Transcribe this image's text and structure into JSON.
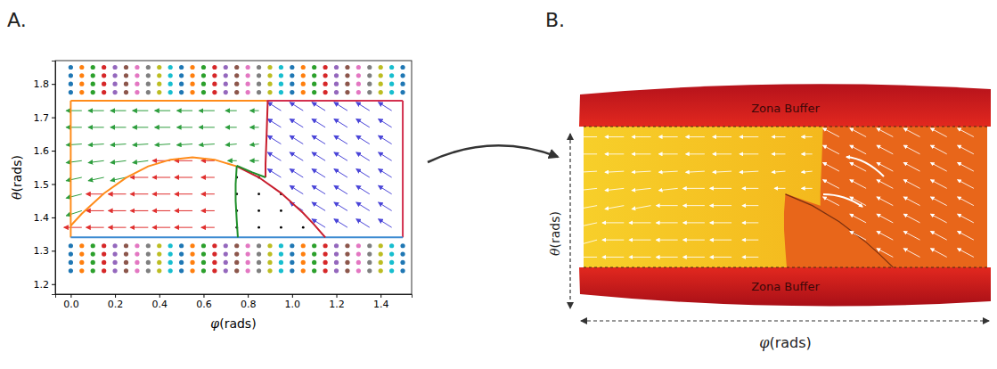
{
  "chart_data": {
    "type": "quiver",
    "panel_label": "A.",
    "x_label": "φ(rads)",
    "y_label": "θ(rads)",
    "xlim": [
      -0.07,
      1.54
    ],
    "ylim": [
      1.17,
      1.87
    ],
    "xticks": [
      {
        "value": 0,
        "label": "0.0"
      },
      0.2,
      0.4,
      0.6,
      0.8,
      {
        "value": 1,
        "label": "1.0"
      },
      1.2,
      1.4
    ],
    "yticks": [
      1.2,
      1.3,
      1.4,
      1.5,
      1.6,
      1.7,
      1.8
    ],
    "dots": {
      "x": [
        0,
        0.05,
        0.1,
        0.15,
        0.2,
        0.25,
        0.3,
        0.35,
        0.4,
        0.45,
        0.5,
        0.55,
        0.6,
        0.65,
        0.7,
        0.75,
        0.8,
        0.85,
        0.9,
        0.95,
        1,
        1.05,
        1.1,
        1.15,
        1.2,
        1.25,
        1.3,
        1.35,
        1.4,
        1.45,
        1.5
      ],
      "y": [
        1.24,
        1.265,
        1.29,
        1.315,
        1.775,
        1.8,
        1.825,
        1.85
      ],
      "colors": [
        "#1f77b4",
        "#ff7f0e",
        "#2ca02c",
        "#d62728",
        "#9467bd",
        "#8c564b",
        "#e377c2",
        "#7f7f7f",
        "#bcbd22",
        "#17becf"
      ]
    },
    "fields": [
      {
        "color": "#2e9e3e",
        "x": [
          0.05,
          0.05,
          0.05,
          0.15,
          0.25,
          0.05,
          0.15,
          0.25,
          0.35,
          0.75,
          0.85,
          0.05,
          0.15,
          0.25,
          0.35,
          0.45,
          0.55,
          0.65,
          0.75,
          0.85,
          0.05,
          0.15,
          0.25,
          0.35,
          0.45,
          0.55,
          0.65,
          0.75,
          0.85,
          0.05,
          0.15,
          0.25,
          0.35,
          0.45,
          0.55,
          0.65,
          0.75,
          0.85
        ],
        "y": [
          1.42,
          1.47,
          1.52,
          1.52,
          1.52,
          1.57,
          1.57,
          1.57,
          1.57,
          1.57,
          1.57,
          1.62,
          1.62,
          1.62,
          1.62,
          1.62,
          1.62,
          1.62,
          1.62,
          1.62,
          1.67,
          1.67,
          1.67,
          1.67,
          1.67,
          1.67,
          1.67,
          1.67,
          1.67,
          1.72,
          1.72,
          1.72,
          1.72,
          1.72,
          1.72,
          1.72,
          1.72,
          1.72
        ],
        "u": [
          -0.07,
          -0.07,
          -0.07,
          -0.07,
          -0.07,
          -0.07,
          -0.07,
          -0.07,
          -0.07,
          -0.04,
          -0.04,
          -0.07,
          -0.07,
          -0.07,
          -0.07,
          -0.07,
          -0.07,
          -0.07,
          -0.05,
          -0.04,
          -0.07,
          -0.07,
          -0.07,
          -0.07,
          -0.07,
          -0.07,
          -0.07,
          -0.05,
          -0.04,
          -0.07,
          -0.07,
          -0.07,
          -0.07,
          -0.07,
          -0.07,
          -0.07,
          -0.05,
          -0.04
        ],
        "v": [
          -0.015,
          -0.012,
          -0.01,
          -0.01,
          -0.01,
          -0.006,
          -0.006,
          -0.006,
          -0.006,
          0,
          0,
          -0.003,
          -0.003,
          -0.003,
          -0.003,
          -0.003,
          -0.003,
          -0.003,
          -0.003,
          -0.003,
          0,
          0,
          0,
          0,
          0,
          0,
          0,
          0,
          0,
          0,
          0,
          0,
          0,
          0,
          0,
          0,
          0,
          0
        ]
      },
      {
        "color": "#e0302f",
        "x": [
          0.05,
          0.15,
          0.25,
          0.35,
          0.45,
          0.55,
          0.65,
          0.15,
          0.25,
          0.35,
          0.45,
          0.55,
          0.65,
          0.15,
          0.25,
          0.35,
          0.45,
          0.55,
          0.65,
          0.35,
          0.45,
          0.55,
          0.65,
          0.45,
          0.55,
          0.65
        ],
        "y": [
          1.37,
          1.37,
          1.37,
          1.37,
          1.37,
          1.37,
          1.37,
          1.42,
          1.42,
          1.42,
          1.42,
          1.42,
          1.42,
          1.47,
          1.47,
          1.47,
          1.47,
          1.47,
          1.47,
          1.52,
          1.52,
          1.52,
          1.52,
          1.57,
          1.57,
          1.57
        ],
        "u": [
          -0.08,
          -0.08,
          -0.08,
          -0.08,
          -0.08,
          -0.08,
          -0.06,
          -0.08,
          -0.08,
          -0.08,
          -0.08,
          -0.08,
          -0.06,
          -0.08,
          -0.08,
          -0.08,
          -0.08,
          -0.08,
          -0.06,
          -0.08,
          -0.08,
          -0.08,
          -0.06,
          -0.08,
          -0.08,
          -0.06
        ],
        "v": [
          0,
          0,
          0,
          0,
          0,
          0,
          0,
          0,
          0,
          0,
          0,
          0,
          0,
          0,
          0,
          0,
          0,
          0,
          0,
          0,
          0,
          0,
          0,
          0,
          0,
          0
        ]
      },
      {
        "color": "#000000",
        "x": [
          0.75,
          0.85,
          0.95,
          1.05,
          0.75,
          0.85,
          0.95,
          0.75,
          0.85,
          0.95,
          0.75,
          0.85
        ],
        "y": [
          1.37,
          1.37,
          1.37,
          1.37,
          1.42,
          1.42,
          1.42,
          1.47,
          1.47,
          1.47,
          1.52,
          1.52
        ],
        "u": [
          0,
          0,
          0,
          0,
          0,
          0,
          0,
          0,
          0,
          0,
          0,
          0
        ],
        "v": [
          0,
          0,
          0,
          0,
          0,
          0,
          0,
          0,
          0,
          0,
          0,
          0
        ]
      },
      {
        "color": "#4a45d8",
        "x": [
          1.15,
          1.25,
          1.35,
          1.45,
          1.05,
          1.15,
          1.25,
          1.35,
          1.45,
          1.05,
          1.15,
          1.25,
          1.35,
          1.45,
          0.95,
          1.05,
          1.15,
          1.25,
          1.35,
          1.45,
          0.95,
          1.05,
          1.15,
          1.25,
          1.35,
          1.45,
          0.95,
          1.05,
          1.15,
          1.25,
          1.35,
          1.45,
          0.95,
          1.05,
          1.15,
          1.25,
          1.35,
          1.45,
          0.95,
          1.05,
          1.15,
          1.25,
          1.35,
          1.45
        ],
        "y": [
          1.37,
          1.37,
          1.37,
          1.37,
          1.42,
          1.42,
          1.42,
          1.42,
          1.42,
          1.47,
          1.47,
          1.47,
          1.47,
          1.47,
          1.52,
          1.52,
          1.52,
          1.52,
          1.52,
          1.52,
          1.57,
          1.57,
          1.57,
          1.57,
          1.57,
          1.57,
          1.62,
          1.62,
          1.62,
          1.62,
          1.62,
          1.62,
          1.67,
          1.67,
          1.67,
          1.67,
          1.67,
          1.67,
          1.72,
          1.72,
          1.72,
          1.72,
          1.72,
          1.72
        ],
        "u": [
          -0.06,
          -0.06,
          -0.06,
          -0.06,
          -0.06,
          -0.06,
          -0.06,
          -0.06,
          -0.06,
          -0.06,
          -0.06,
          -0.06,
          -0.06,
          -0.06,
          -0.06,
          -0.06,
          -0.06,
          -0.06,
          -0.06,
          -0.06,
          -0.06,
          -0.06,
          -0.06,
          -0.06,
          -0.06,
          -0.06,
          -0.06,
          -0.06,
          -0.06,
          -0.06,
          -0.06,
          -0.06,
          -0.06,
          -0.06,
          -0.06,
          -0.06,
          -0.06,
          -0.06,
          -0.06,
          -0.06,
          -0.06,
          -0.06,
          -0.06,
          -0.06
        ],
        "v": [
          0.025,
          0.025,
          0.025,
          0.025,
          0.025,
          0.025,
          0.025,
          0.025,
          0.025,
          0.025,
          0.025,
          0.025,
          0.025,
          0.025,
          0.025,
          0.025,
          0.025,
          0.025,
          0.025,
          0.025,
          0.025,
          0.025,
          0.025,
          0.025,
          0.025,
          0.025,
          0.025,
          0.025,
          0.025,
          0.025,
          0.025,
          0.025,
          0.025,
          0.025,
          0.025,
          0.025,
          0.025,
          0.025,
          0.025,
          0.025,
          0.025,
          0.025,
          0.025,
          0.025
        ]
      }
    ],
    "boundaries": [
      {
        "color": "#ff8c1a",
        "x": [
          0,
          0
        ],
        "y": [
          1.34,
          1.75
        ]
      },
      {
        "color": "#ff8c1a",
        "x": [
          0,
          0.885
        ],
        "y": [
          1.75,
          1.75
        ]
      },
      {
        "color": "#d3304f",
        "x": [
          0.885,
          1.5
        ],
        "y": [
          1.75,
          1.75
        ]
      },
      {
        "color": "#d3304f",
        "x": [
          1.5,
          1.5
        ],
        "y": [
          1.75,
          1.34
        ]
      },
      {
        "color": "#3d8bd1",
        "x": [
          0,
          1.5
        ],
        "y": [
          1.34,
          1.34
        ]
      },
      {
        "color": "#c81e2e",
        "x": [
          0.89,
          0.885,
          0.88,
          0.88
        ],
        "y": [
          1.75,
          1.65,
          1.56,
          1.52
        ]
      },
      {
        "color": "#ff8c1a",
        "x": [
          0,
          0.05,
          0.15,
          0.25,
          0.35,
          0.45,
          0.55,
          0.65,
          0.75
        ],
        "y": [
          1.375,
          1.411,
          1.472,
          1.519,
          1.553,
          1.573,
          1.58,
          1.573,
          1.553
        ]
      },
      {
        "color": "#c81e2e",
        "x": [
          0.75,
          0.85,
          0.95,
          1.05,
          1.1,
          1.15
        ],
        "y": [
          1.553,
          1.52,
          1.473,
          1.413,
          1.378,
          1.34
        ]
      },
      {
        "color": "#1f8f2a",
        "x": [
          0.88,
          0.82,
          0.75
        ],
        "y": [
          1.52,
          1.535,
          1.555
        ]
      },
      {
        "color": "#1f8f2a",
        "x": [
          0.75,
          0.745,
          0.745,
          0.75,
          0.755
        ],
        "y": [
          1.555,
          1.5,
          1.45,
          1.39,
          1.34
        ]
      }
    ]
  },
  "panel_b": {
    "panel_label": "B.",
    "band_labels": [
      "Zona Buffer",
      "Zona Buffer"
    ],
    "x_label": "φ(rads)",
    "y_label": "θ(rads)"
  }
}
